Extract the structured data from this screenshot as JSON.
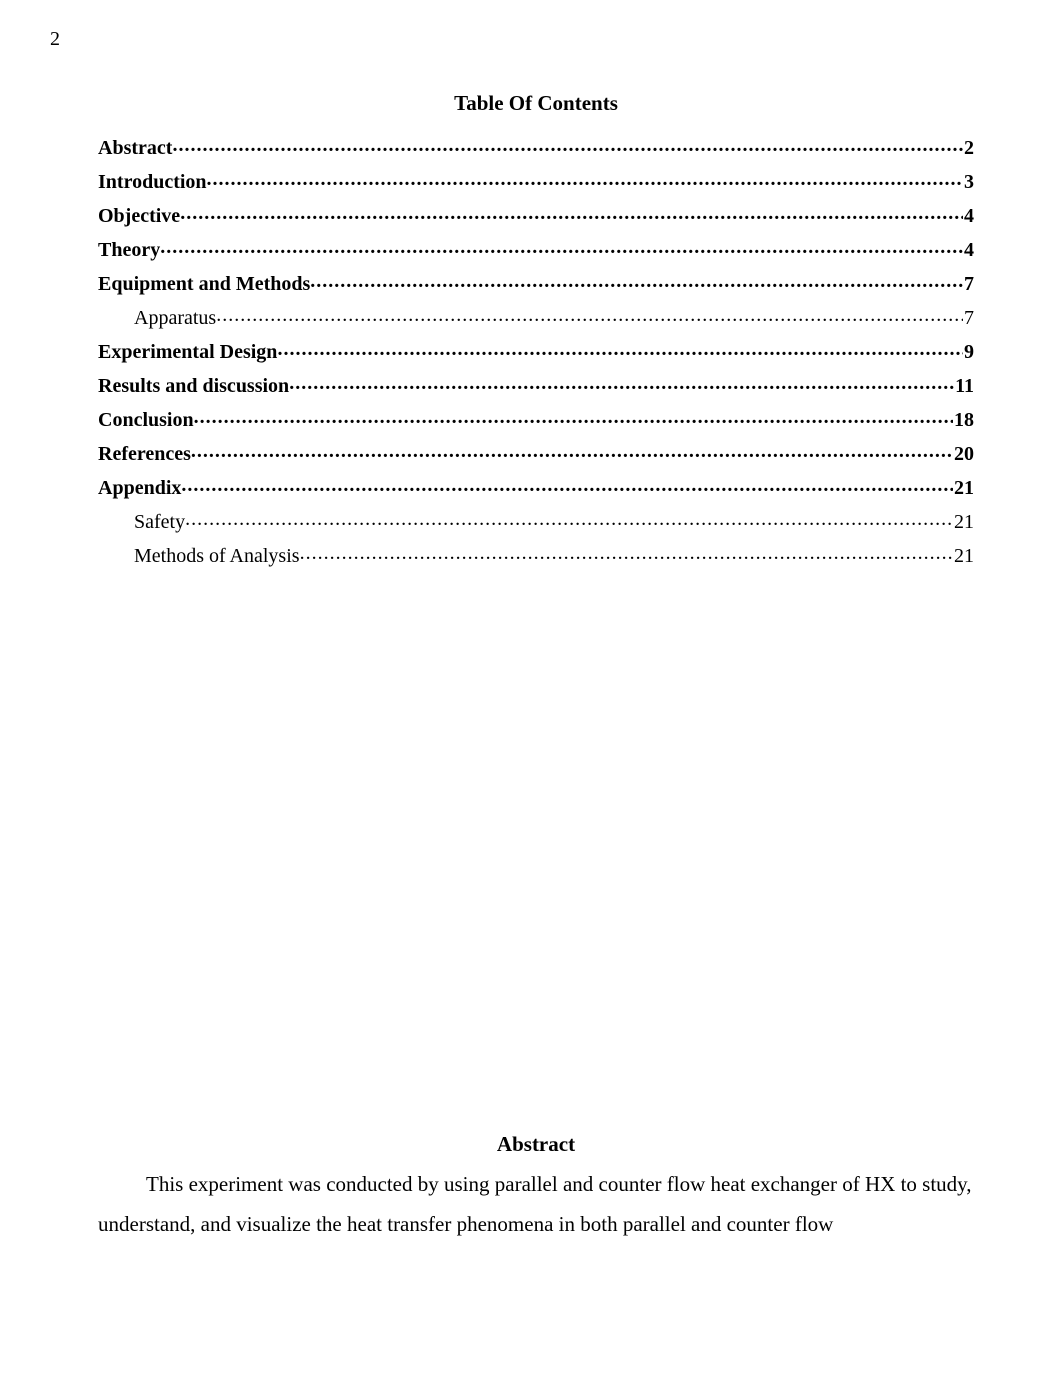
{
  "page_number": "2",
  "toc_title": "Table Of Contents",
  "toc": [
    {
      "label": "Abstract",
      "page": "2",
      "bold": true,
      "sub": false
    },
    {
      "label": "Introduction",
      "page": "3",
      "bold": true,
      "sub": false
    },
    {
      "label": "Objective",
      "page": "4",
      "bold": true,
      "sub": false
    },
    {
      "label": "Theory",
      "page": "4",
      "bold": true,
      "sub": false
    },
    {
      "label": "Equipment and Methods",
      "page": "7",
      "bold": true,
      "sub": false
    },
    {
      "label": "Apparatus",
      "page": "7",
      "bold": false,
      "sub": true
    },
    {
      "label": "Experimental Design",
      "page": "9",
      "bold": true,
      "sub": false
    },
    {
      "label": "Results and discussion",
      "page": "11",
      "bold": true,
      "sub": false
    },
    {
      "label": "Conclusion",
      "page": "18",
      "bold": true,
      "sub": false
    },
    {
      "label": "References",
      "page": "20",
      "bold": true,
      "sub": false
    },
    {
      "label": "Appendix",
      "page": "21",
      "bold": true,
      "sub": false
    },
    {
      "label": "Safety",
      "page": "21",
      "bold": false,
      "sub": true
    },
    {
      "label": "Methods of Analysis",
      "page": "21",
      "bold": false,
      "sub": true
    }
  ],
  "abstract_heading": "Abstract",
  "abstract_body": "This experiment was conducted by using parallel and counter flow heat exchanger of HX to study, understand, and visualize the heat transfer phenomena in both parallel and counter flow"
}
